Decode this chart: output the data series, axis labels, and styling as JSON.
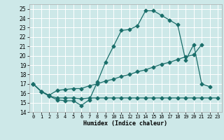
{
  "title": "",
  "xlabel": "Humidex (Indice chaleur)",
  "xlim": [
    -0.5,
    23.5
  ],
  "ylim": [
    14,
    25.5
  ],
  "xticks": [
    0,
    1,
    2,
    3,
    4,
    5,
    6,
    7,
    8,
    9,
    10,
    11,
    12,
    13,
    14,
    15,
    16,
    17,
    18,
    19,
    20,
    21,
    22,
    23
  ],
  "yticks": [
    14,
    15,
    16,
    17,
    18,
    19,
    20,
    21,
    22,
    23,
    24,
    25
  ],
  "bg_color": "#cde8e8",
  "grid_color": "#ffffff",
  "line_color": "#1a6e6a",
  "line1_x": [
    0,
    1,
    2,
    3,
    4,
    5,
    6,
    7,
    8,
    9,
    10,
    11,
    12,
    13,
    14,
    15,
    16,
    17,
    18,
    19,
    20,
    21,
    22
  ],
  "line1_y": [
    17.0,
    16.2,
    15.7,
    15.3,
    15.2,
    15.2,
    14.7,
    15.3,
    17.2,
    19.3,
    21.0,
    22.7,
    22.8,
    23.2,
    24.8,
    24.8,
    24.3,
    23.8,
    23.3,
    19.5,
    21.2,
    17.0,
    16.7
  ],
  "line2_x": [
    0,
    1,
    2,
    3,
    4,
    5,
    6,
    7,
    8,
    9,
    10,
    11,
    12,
    13,
    14,
    15,
    16,
    17,
    18,
    19,
    20,
    21
  ],
  "line2_y": [
    17.0,
    16.2,
    15.8,
    16.3,
    16.4,
    16.5,
    16.5,
    16.8,
    17.0,
    17.3,
    17.5,
    17.8,
    18.0,
    18.3,
    18.5,
    18.8,
    19.1,
    19.3,
    19.6,
    19.9,
    20.1,
    21.2
  ],
  "line3_x": [
    0,
    1,
    2,
    3,
    4,
    5,
    6,
    7,
    8,
    9,
    10,
    11,
    12,
    13,
    14,
    15,
    16,
    17,
    18,
    19,
    20,
    21,
    22,
    23
  ],
  "line3_y": [
    17.0,
    16.2,
    15.7,
    15.5,
    15.5,
    15.5,
    15.4,
    15.5,
    15.5,
    15.5,
    15.5,
    15.5,
    15.5,
    15.5,
    15.5,
    15.5,
    15.5,
    15.5,
    15.5,
    15.5,
    15.5,
    15.5,
    15.5,
    15.5
  ],
  "markersize": 2.5,
  "linewidth": 0.9
}
